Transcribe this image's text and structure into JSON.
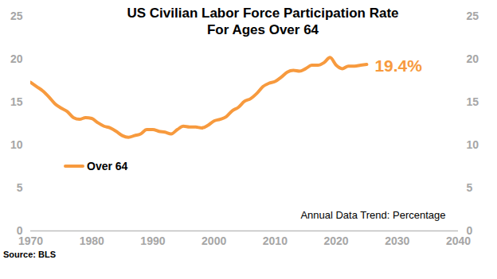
{
  "chart_data": {
    "type": "line",
    "title": "US Civilian Labor Force Participation Rate For Ages Over 64",
    "source": "Source: BLS",
    "annotations": [
      {
        "text": "Annual Data Trend: Percentage"
      },
      {
        "text": "19.4%",
        "x": 2025,
        "y": 19.4
      }
    ],
    "x": [
      1970,
      1971,
      1972,
      1973,
      1974,
      1975,
      1976,
      1977,
      1978,
      1979,
      1980,
      1981,
      1982,
      1983,
      1984,
      1985,
      1986,
      1987,
      1988,
      1989,
      1990,
      1991,
      1992,
      1993,
      1994,
      1995,
      1996,
      1997,
      1998,
      1999,
      2000,
      2001,
      2002,
      2003,
      2004,
      2005,
      2006,
      2007,
      2008,
      2009,
      2010,
      2011,
      2012,
      2013,
      2014,
      2015,
      2016,
      2017,
      2018,
      2019,
      2020,
      2021,
      2022,
      2023,
      2024,
      2025
    ],
    "series": [
      {
        "name": "Over 64",
        "color": "#F79A3E",
        "values": [
          17.3,
          16.8,
          16.3,
          15.6,
          14.8,
          14.3,
          13.9,
          13.2,
          13.0,
          13.2,
          13.1,
          12.6,
          12.2,
          12.0,
          11.6,
          11.1,
          10.9,
          11.1,
          11.3,
          11.8,
          11.8,
          11.6,
          11.5,
          11.3,
          11.8,
          12.2,
          12.1,
          12.1,
          12.0,
          12.3,
          12.8,
          13.0,
          13.3,
          14.0,
          14.4,
          15.1,
          15.4,
          16.0,
          16.8,
          17.2,
          17.4,
          17.9,
          18.5,
          18.7,
          18.6,
          18.9,
          19.3,
          19.3,
          19.6,
          20.2,
          19.3,
          18.9,
          19.2,
          19.2,
          19.3,
          19.4
        ]
      }
    ],
    "xlim": [
      1970,
      2040
    ],
    "xticks": [
      1970,
      1980,
      1990,
      2000,
      2010,
      2020,
      2030,
      2040
    ],
    "ylim": [
      0,
      25
    ],
    "yticks": [
      0,
      5,
      10,
      15,
      20,
      25
    ],
    "y2lim": [
      0,
      25
    ],
    "y2ticks": [
      0,
      5,
      10,
      15,
      20,
      25
    ],
    "grid": false,
    "legend": "left"
  }
}
